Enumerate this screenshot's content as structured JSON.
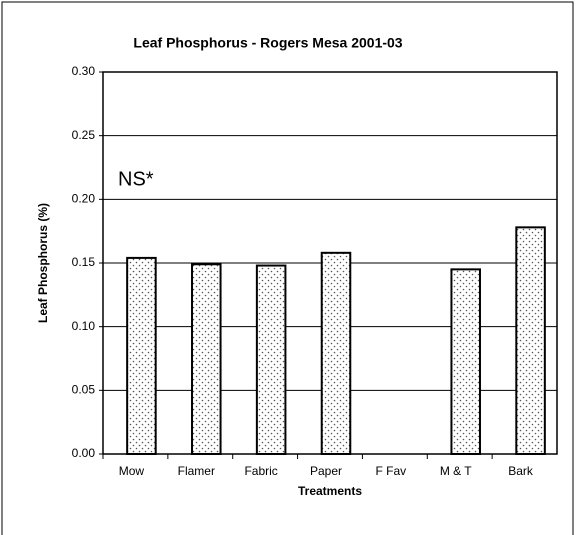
{
  "chart_data": {
    "type": "bar",
    "title": "Leaf Phosphorus - Rogers Mesa 2001-03",
    "x_label": "Treatments",
    "y_label": "Leaf Phosphorus (%)",
    "annotation": "NS*",
    "categories": [
      "Mow",
      "Flamer",
      "Fabric",
      "Paper",
      "F Fav",
      "M & T",
      "Bark"
    ],
    "values": [
      0.154,
      0.149,
      0.148,
      0.158,
      null,
      0.145,
      0.178
    ],
    "color": "#ffffff",
    "ylim": [
      0,
      0.3
    ],
    "yticks": [
      {
        "value": 0,
        "label": "0.00"
      },
      {
        "value": 0.05,
        "label": "0.05"
      },
      {
        "value": 0.1,
        "label": "0.10"
      },
      {
        "value": 0.15,
        "label": "0.15"
      },
      {
        "value": 0.2,
        "label": "0.20"
      },
      {
        "value": 0.25,
        "label": "0.25"
      },
      {
        "value": 0.3,
        "label": "0.30"
      }
    ],
    "grid": true
  }
}
